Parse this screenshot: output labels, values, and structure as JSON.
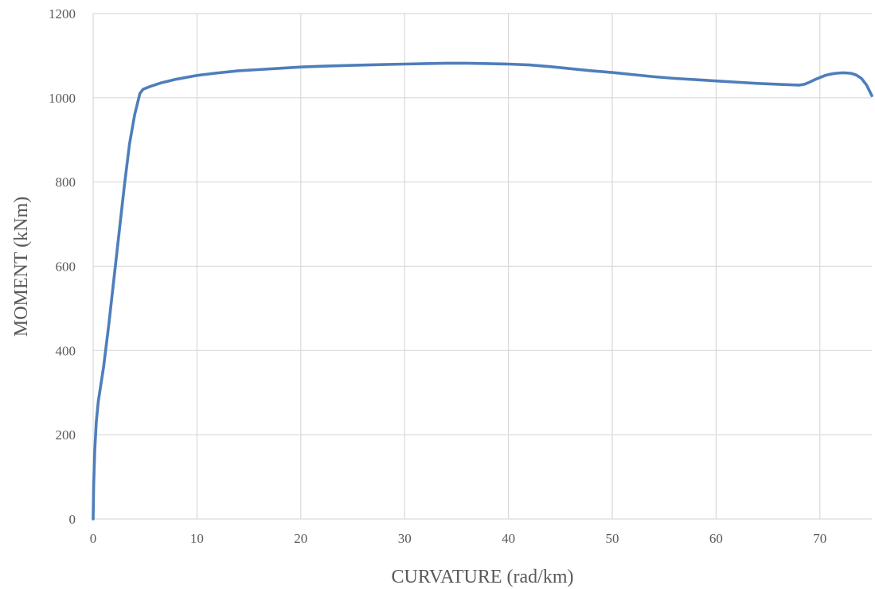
{
  "chart_data": {
    "type": "line",
    "title": "",
    "xlabel": "CURVATURE (rad/km)",
    "ylabel": "MOMENT (kNm)",
    "xlim": [
      0,
      75
    ],
    "ylim": [
      0,
      1200
    ],
    "xticks": [
      0,
      10,
      20,
      30,
      40,
      50,
      60,
      70
    ],
    "yticks": [
      0,
      200,
      400,
      600,
      800,
      1000,
      1200
    ],
    "grid": true,
    "legend": "none",
    "series": [
      {
        "color": "#4e7ebb",
        "x": [
          0,
          0.05,
          0.15,
          0.3,
          0.5,
          1.0,
          1.5,
          2.0,
          2.5,
          3.0,
          3.5,
          4.0,
          4.5,
          4.8,
          5.5,
          6.5,
          8,
          10,
          12,
          14,
          16,
          18,
          20,
          22,
          25,
          28,
          30,
          32,
          34,
          36,
          38,
          40,
          42,
          44,
          46,
          48,
          50,
          52,
          54,
          56,
          58,
          60,
          62,
          64,
          66,
          68,
          68.5,
          69,
          69.5,
          70,
          70.5,
          71,
          71.5,
          72,
          72.5,
          73,
          73.5,
          74,
          74.5,
          75
        ],
        "y": [
          0,
          80,
          160,
          230,
          280,
          360,
          460,
          570,
          680,
          790,
          890,
          960,
          1010,
          1020,
          1027,
          1035,
          1044,
          1053,
          1059,
          1064,
          1067,
          1070,
          1073,
          1075,
          1077,
          1079,
          1080,
          1081,
          1082,
          1082,
          1081,
          1080,
          1078,
          1074,
          1069,
          1064,
          1060,
          1055,
          1050,
          1046,
          1043,
          1040,
          1037,
          1034,
          1032,
          1030,
          1032,
          1037,
          1043,
          1048,
          1053,
          1056,
          1058,
          1059,
          1059,
          1058,
          1054,
          1046,
          1030,
          1005
        ]
      }
    ]
  }
}
